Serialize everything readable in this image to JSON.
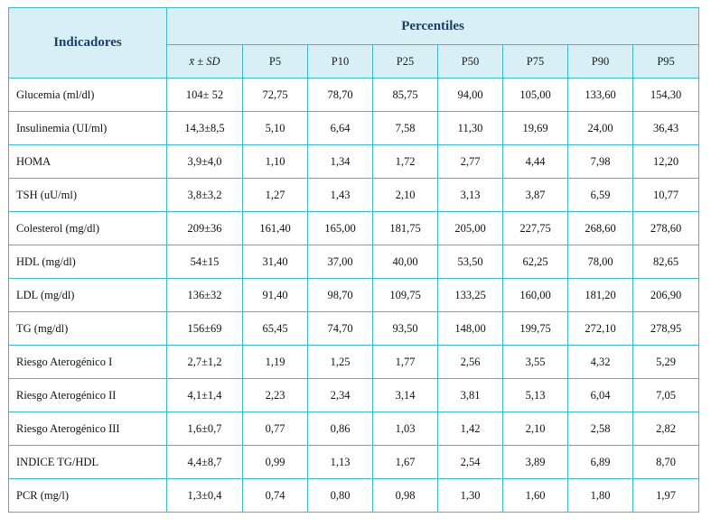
{
  "table": {
    "indicators_header": "Indicadores",
    "percentiles_header": "Percentiles",
    "subheaders": [
      "x̄ ± SD",
      "P5",
      "P10",
      "P25",
      "P50",
      "P75",
      "P90",
      "P95"
    ],
    "rows": [
      {
        "label": "Glucemia (ml/dl)",
        "values": [
          "104± 52",
          "72,75",
          "78,70",
          "85,75",
          "94,00",
          "105,00",
          "133,60",
          "154,30"
        ]
      },
      {
        "label": "Insulinemia (UI/ml)",
        "values": [
          "14,3±8,5",
          "5,10",
          "6,64",
          "7,58",
          "11,30",
          "19,69",
          "24,00",
          "36,43"
        ]
      },
      {
        "label": "HOMA",
        "values": [
          "3,9±4,0",
          "1,10",
          "1,34",
          "1,72",
          "2,77",
          "4,44",
          "7,98",
          "12,20"
        ]
      },
      {
        "label": "TSH (uU/ml)",
        "values": [
          "3,8±3,2",
          "1,27",
          "1,43",
          "2,10",
          "3,13",
          "3,87",
          "6,59",
          "10,77"
        ]
      },
      {
        "label": "Colesterol (mg/dl)",
        "values": [
          "209±36",
          "161,40",
          "165,00",
          "181,75",
          "205,00",
          "227,75",
          "268,60",
          "278,60"
        ]
      },
      {
        "label": "HDL (mg/dl)",
        "values": [
          "54±15",
          "31,40",
          "37,00",
          "40,00",
          "53,50",
          "62,25",
          "78,00",
          "82,65"
        ]
      },
      {
        "label": "LDL (mg/dl)",
        "values": [
          "136±32",
          "91,40",
          "98,70",
          "109,75",
          "133,25",
          "160,00",
          "181,20",
          "206,90"
        ]
      },
      {
        "label": "TG (mg/dl)",
        "values": [
          "156±69",
          "65,45",
          "74,70",
          "93,50",
          "148,00",
          "199,75",
          "272,10",
          "278,95"
        ]
      },
      {
        "label": "Riesgo Aterogénico I",
        "values": [
          "2,7±1,2",
          "1,19",
          "1,25",
          "1,77",
          "2,56",
          "3,55",
          "4,32",
          "5,29"
        ]
      },
      {
        "label": "Riesgo Aterogénico II",
        "values": [
          "4,1±1,4",
          "2,23",
          "2,34",
          "3,14",
          "3,81",
          "5,13",
          "6,04",
          "7,05"
        ]
      },
      {
        "label": "Riesgo Aterogénico III",
        "values": [
          "1,6±0,7",
          "0,77",
          "0,86",
          "1,03",
          "1,42",
          "2,10",
          "2,58",
          "2,82"
        ]
      },
      {
        "label": "INDICE TG/HDL",
        "values": [
          "4,4±8,7",
          "0,99",
          "1,13",
          "1,67",
          "2,54",
          "3,89",
          "6,89",
          "8,70"
        ]
      },
      {
        "label": "PCR (mg/l)",
        "values": [
          "1,3±0,4",
          "0,74",
          "0,80",
          "0,98",
          "1,30",
          "1,60",
          "1,80",
          "1,97"
        ]
      }
    ]
  }
}
